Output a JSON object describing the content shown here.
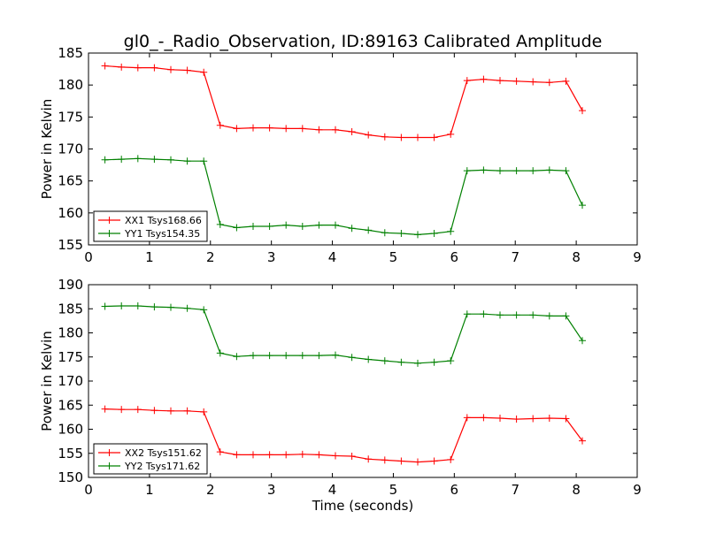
{
  "figure": {
    "title": "gl0_-_Radio_Observation, ID:89163 Calibrated Amplitude",
    "xlabel": "Time (seconds)"
  },
  "chart_data": [
    {
      "type": "line",
      "ylabel": "Power in Kelvin",
      "xlim": [
        0,
        9
      ],
      "ylim": [
        155,
        185
      ],
      "xticks": [
        0,
        1,
        2,
        3,
        4,
        5,
        6,
        7,
        8,
        9
      ],
      "yticks": [
        155,
        160,
        165,
        170,
        175,
        180,
        185
      ],
      "legend_position": "lower-left",
      "series": [
        {
          "name": "XX1 Tsys168.66",
          "color": "#ff0000",
          "x": [
            0.27,
            0.54,
            0.81,
            1.08,
            1.35,
            1.62,
            1.89,
            2.16,
            2.43,
            2.7,
            2.97,
            3.24,
            3.51,
            3.78,
            4.05,
            4.32,
            4.59,
            4.86,
            5.13,
            5.4,
            5.67,
            5.94,
            6.21,
            6.48,
            6.75,
            7.02,
            7.29,
            7.56,
            7.83,
            8.1
          ],
          "y": [
            183.0,
            182.8,
            182.7,
            182.7,
            182.4,
            182.3,
            182.0,
            173.7,
            173.2,
            173.3,
            173.3,
            173.2,
            173.2,
            173.0,
            173.0,
            172.7,
            172.2,
            171.9,
            171.8,
            171.8,
            171.8,
            172.3,
            180.7,
            180.9,
            180.7,
            180.6,
            180.5,
            180.4,
            180.6,
            176.0
          ]
        },
        {
          "name": "YY1 Tsys154.35",
          "color": "#008000",
          "x": [
            0.27,
            0.54,
            0.81,
            1.08,
            1.35,
            1.62,
            1.89,
            2.16,
            2.43,
            2.7,
            2.97,
            3.24,
            3.51,
            3.78,
            4.05,
            4.32,
            4.59,
            4.86,
            5.13,
            5.4,
            5.67,
            5.94,
            6.21,
            6.48,
            6.75,
            7.02,
            7.29,
            7.56,
            7.83,
            8.1
          ],
          "y": [
            168.3,
            168.4,
            168.5,
            168.4,
            168.3,
            168.1,
            168.1,
            158.2,
            157.7,
            157.9,
            157.9,
            158.1,
            157.9,
            158.1,
            158.1,
            157.6,
            157.3,
            156.9,
            156.8,
            156.6,
            156.8,
            157.1,
            166.6,
            166.7,
            166.6,
            166.6,
            166.6,
            166.7,
            166.6,
            161.2
          ]
        }
      ]
    },
    {
      "type": "line",
      "ylabel": "Power in Kelvin",
      "xlabel": "Time (seconds)",
      "xlim": [
        0,
        9
      ],
      "ylim": [
        150,
        190
      ],
      "xticks": [
        0,
        1,
        2,
        3,
        4,
        5,
        6,
        7,
        8,
        9
      ],
      "yticks": [
        150,
        155,
        160,
        165,
        170,
        175,
        180,
        185,
        190
      ],
      "legend_position": "lower-left",
      "series": [
        {
          "name": "XX2 Tsys151.62",
          "color": "#ff0000",
          "x": [
            0.27,
            0.54,
            0.81,
            1.08,
            1.35,
            1.62,
            1.89,
            2.16,
            2.43,
            2.7,
            2.97,
            3.24,
            3.51,
            3.78,
            4.05,
            4.32,
            4.59,
            4.86,
            5.13,
            5.4,
            5.67,
            5.94,
            6.21,
            6.48,
            6.75,
            7.02,
            7.29,
            7.56,
            7.83,
            8.1
          ],
          "y": [
            164.2,
            164.1,
            164.1,
            163.9,
            163.8,
            163.8,
            163.6,
            155.3,
            154.7,
            154.7,
            154.7,
            154.7,
            154.8,
            154.7,
            154.5,
            154.4,
            153.8,
            153.6,
            153.4,
            153.2,
            153.4,
            153.7,
            162.4,
            162.4,
            162.3,
            162.1,
            162.2,
            162.3,
            162.2,
            157.6
          ]
        },
        {
          "name": "YY2 Tsys171.62",
          "color": "#008000",
          "x": [
            0.27,
            0.54,
            0.81,
            1.08,
            1.35,
            1.62,
            1.89,
            2.16,
            2.43,
            2.7,
            2.97,
            3.24,
            3.51,
            3.78,
            4.05,
            4.32,
            4.59,
            4.86,
            5.13,
            5.4,
            5.67,
            5.94,
            6.21,
            6.48,
            6.75,
            7.02,
            7.29,
            7.56,
            7.83,
            8.1
          ],
          "y": [
            185.5,
            185.6,
            185.6,
            185.4,
            185.3,
            185.1,
            184.8,
            175.8,
            175.1,
            175.3,
            175.3,
            175.3,
            175.3,
            175.3,
            175.4,
            174.9,
            174.5,
            174.2,
            173.9,
            173.7,
            173.9,
            174.2,
            183.9,
            183.9,
            183.7,
            183.7,
            183.7,
            183.5,
            183.5,
            178.4
          ]
        }
      ]
    }
  ]
}
